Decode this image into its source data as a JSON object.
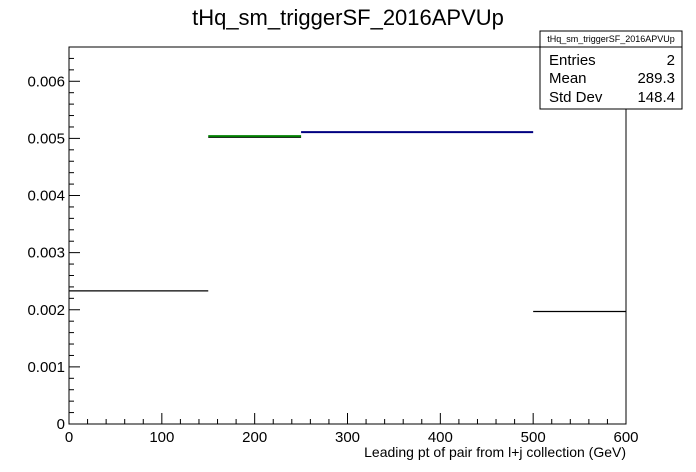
{
  "chart_data": {
    "type": "histogram",
    "title": "tHq_sm_triggerSF_2016APVUp",
    "xlabel": "Leading pt of pair from l+j collection (GeV)",
    "ylabel": "",
    "xlim": [
      0,
      600
    ],
    "ylim": [
      0,
      0.0066
    ],
    "x_ticks": [
      {
        "value": 0,
        "label": "0"
      },
      {
        "value": 100,
        "label": "100"
      },
      {
        "value": 200,
        "label": "200"
      },
      {
        "value": 300,
        "label": "300"
      },
      {
        "value": 400,
        "label": "400"
      },
      {
        "value": 500,
        "label": "500"
      },
      {
        "value": 600,
        "label": "600"
      }
    ],
    "y_ticks": [
      {
        "value": 0,
        "label": "0"
      },
      {
        "value": 0.001,
        "label": "0.001"
      },
      {
        "value": 0.002,
        "label": "0.002"
      },
      {
        "value": 0.003,
        "label": "0.003"
      },
      {
        "value": 0.004,
        "label": "0.004"
      },
      {
        "value": 0.005,
        "label": "0.005"
      },
      {
        "value": 0.006,
        "label": "0.006"
      }
    ],
    "bins": [
      {
        "x_low": 0,
        "x_high": 150,
        "value": 0.00233,
        "color": "#000000"
      },
      {
        "x_low": 150,
        "x_high": 250,
        "value": 0.00502,
        "color": "#000000"
      },
      {
        "x_low": 250,
        "x_high": 500,
        "value": 0.00511,
        "color": "#000080"
      },
      {
        "x_low": 500,
        "x_high": 600,
        "value": 0.00197,
        "color": "#000000"
      }
    ],
    "highlight_segments": [
      {
        "x_low": 150,
        "x_high": 250,
        "value": 0.00504,
        "color": "#008000"
      }
    ],
    "grid": false,
    "stats_box": {
      "title": "tHq_sm_triggerSF_2016APVUp",
      "placement": "top-right",
      "rows": [
        {
          "label": "Entries",
          "value": "2"
        },
        {
          "label": "Mean",
          "value": "289.3"
        },
        {
          "label": "Std Dev",
          "value": "148.4"
        }
      ]
    }
  }
}
